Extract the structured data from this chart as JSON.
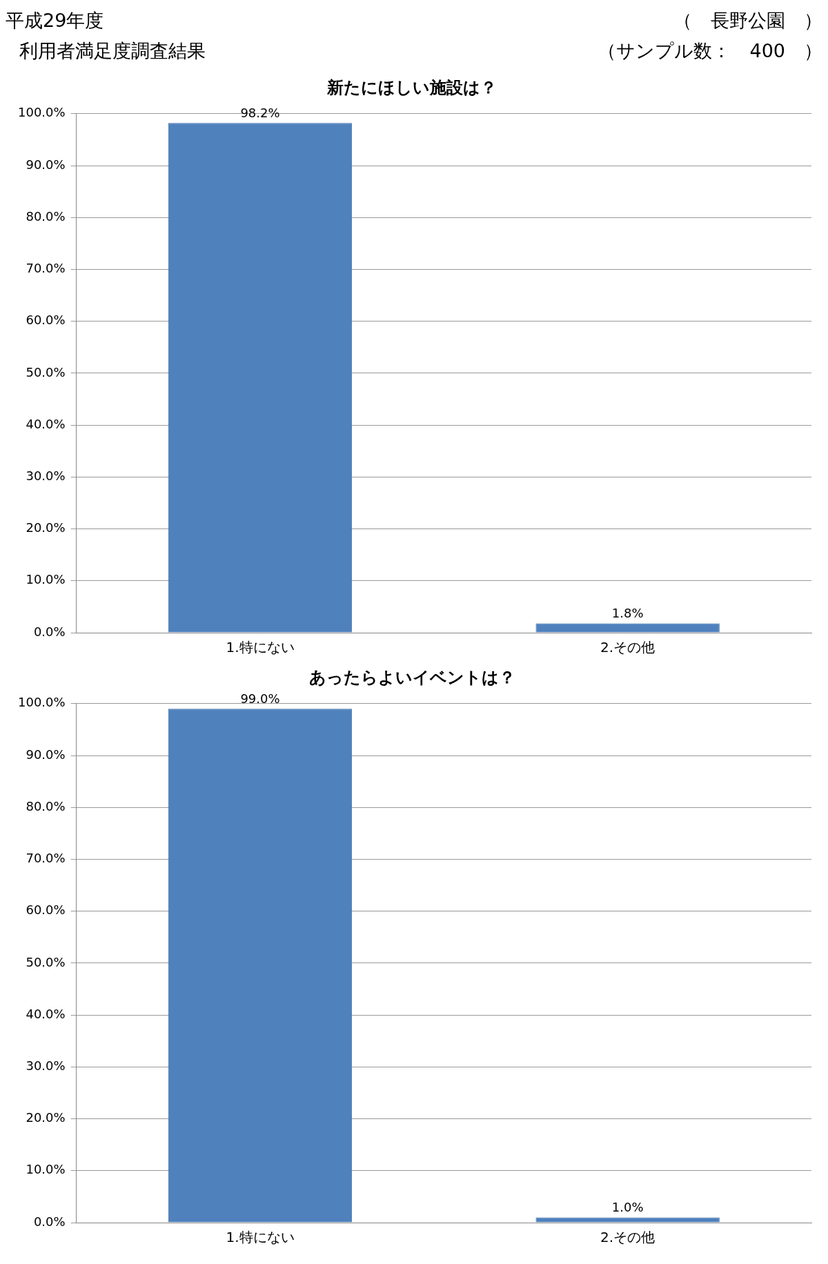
{
  "chart_data": [
    {
      "type": "bar",
      "title": "新たにほしい施設は？",
      "annotations": [
        "平成29年度",
        "利用者満足度調査結果",
        "（　長野公園　）",
        "（サンプル数：　400　）"
      ],
      "categories": [
        "1.特にない",
        "2.その他"
      ],
      "values": [
        98.2,
        1.8
      ],
      "value_labels": [
        "98.2%",
        "1.8%"
      ],
      "color": "#4f81bd",
      "ylim": [
        0,
        100
      ],
      "yticks": [
        {
          "value": 0,
          "label": "0.0%"
        },
        {
          "value": 10,
          "label": "10.0%"
        },
        {
          "value": 20,
          "label": "20.0%"
        },
        {
          "value": 30,
          "label": "30.0%"
        },
        {
          "value": 40,
          "label": "40.0%"
        },
        {
          "value": 50,
          "label": "50.0%"
        },
        {
          "value": 60,
          "label": "60.0%"
        },
        {
          "value": 70,
          "label": "70.0%"
        },
        {
          "value": 80,
          "label": "80.0%"
        },
        {
          "value": 90,
          "label": "90.0%"
        },
        {
          "value": 100,
          "label": "100.0%"
        }
      ],
      "grid": "y",
      "legend": false
    },
    {
      "type": "bar",
      "title": "あったらよいイベントは？",
      "categories": [
        "1.特にない",
        "2.その他"
      ],
      "values": [
        99.0,
        1.0
      ],
      "value_labels": [
        "99.0%",
        "1.0%"
      ],
      "color": "#4f81bd",
      "ylim": [
        0,
        100
      ],
      "yticks": [
        {
          "value": 0,
          "label": "0.0%"
        },
        {
          "value": 10,
          "label": "10.0%"
        },
        {
          "value": 20,
          "label": "20.0%"
        },
        {
          "value": 30,
          "label": "30.0%"
        },
        {
          "value": 40,
          "label": "40.0%"
        },
        {
          "value": 50,
          "label": "50.0%"
        },
        {
          "value": 60,
          "label": "60.0%"
        },
        {
          "value": 70,
          "label": "70.0%"
        },
        {
          "value": 80,
          "label": "80.0%"
        },
        {
          "value": 90,
          "label": "90.0%"
        },
        {
          "value": 100,
          "label": "100.0%"
        }
      ],
      "grid": "y",
      "legend": false
    }
  ]
}
